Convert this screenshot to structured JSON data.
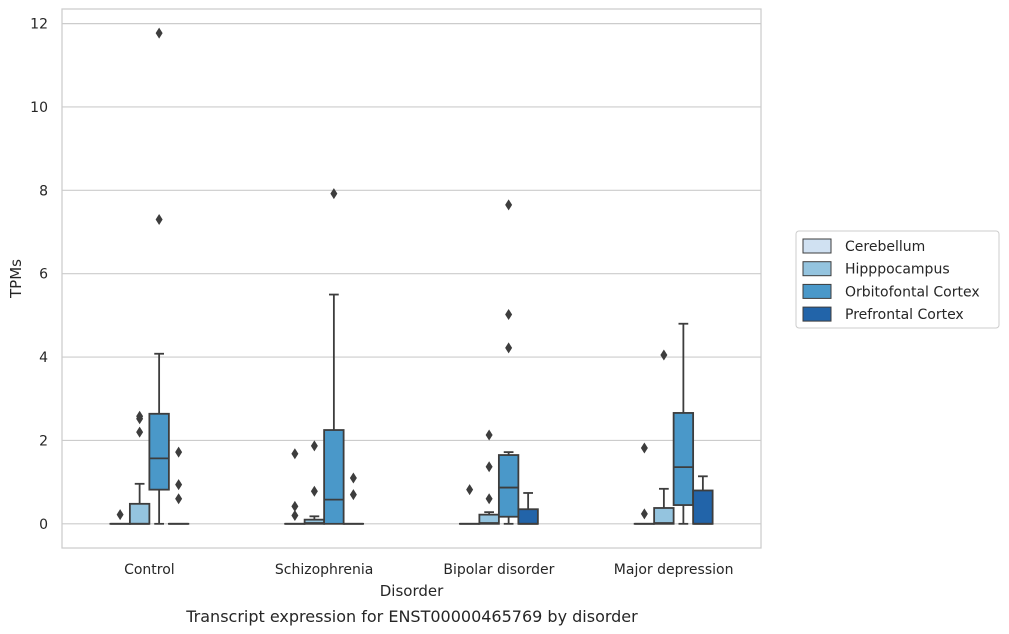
{
  "chart_data": {
    "type": "box",
    "xlabel": "Disorder",
    "ylabel": "TPMs",
    "caption": "Transcript expression for ENST00000465769 by disorder",
    "categories": [
      "Control",
      "Schizophrenia",
      "Bipolar disorder",
      "Major depression"
    ],
    "ylim": [
      -0.58,
      12.35
    ],
    "yticks": [
      0,
      2,
      4,
      6,
      8,
      10,
      12
    ],
    "grid": true,
    "legend_position": "right",
    "series": [
      {
        "name": "Cerebellum",
        "color": "#d0e1f2",
        "boxes": [
          {
            "q1": 0,
            "median": 0,
            "q3": 0,
            "whisker_low": 0,
            "whisker_high": 0,
            "outliers": [
              0.22
            ]
          },
          {
            "q1": 0,
            "median": 0,
            "q3": 0,
            "whisker_low": 0,
            "whisker_high": 0,
            "outliers": [
              0.2,
              0.42,
              1.68
            ]
          },
          {
            "q1": 0,
            "median": 0,
            "q3": 0,
            "whisker_low": 0,
            "whisker_high": 0,
            "outliers": [
              0.82
            ]
          },
          {
            "q1": 0,
            "median": 0,
            "q3": 0,
            "whisker_low": 0,
            "whisker_high": 0,
            "outliers": [
              0.24,
              1.82
            ]
          }
        ]
      },
      {
        "name": "Hipppocampus",
        "color": "#94c4df",
        "boxes": [
          {
            "q1": 0,
            "median": 0,
            "q3": 0.48,
            "whisker_low": 0,
            "whisker_high": 0.96,
            "outliers": [
              2.2,
              2.52,
              2.58
            ]
          },
          {
            "q1": 0,
            "median": 0.02,
            "q3": 0.1,
            "whisker_low": 0,
            "whisker_high": 0.18,
            "outliers": [
              0.78,
              1.87
            ]
          },
          {
            "q1": 0,
            "median": 0.02,
            "q3": 0.22,
            "whisker_low": 0,
            "whisker_high": 0.28,
            "outliers": [
              0.6,
              1.37,
              2.13
            ]
          },
          {
            "q1": 0,
            "median": 0.02,
            "q3": 0.38,
            "whisker_low": 0,
            "whisker_high": 0.84,
            "outliers": [
              4.05
            ]
          }
        ]
      },
      {
        "name": "Orbitofontal Cortex",
        "color": "#4a98c9",
        "boxes": [
          {
            "q1": 0.82,
            "median": 1.57,
            "q3": 2.64,
            "whisker_low": 0,
            "whisker_high": 4.08,
            "outliers": [
              7.3,
              11.77
            ]
          },
          {
            "q1": 0,
            "median": 0.58,
            "q3": 2.25,
            "whisker_low": 0,
            "whisker_high": 5.5,
            "outliers": [
              7.92
            ]
          },
          {
            "q1": 0.17,
            "median": 0.87,
            "q3": 1.65,
            "whisker_low": 0,
            "whisker_high": 1.72,
            "outliers": [
              4.22,
              5.02,
              7.65
            ]
          },
          {
            "q1": 0.45,
            "median": 1.36,
            "q3": 2.66,
            "whisker_low": 0,
            "whisker_high": 4.8,
            "outliers": []
          }
        ]
      },
      {
        "name": "Prefrontal Cortex",
        "color": "#2264a9",
        "boxes": [
          {
            "q1": 0,
            "median": 0,
            "q3": 0,
            "whisker_low": 0,
            "whisker_high": 0,
            "outliers": [
              0.6,
              0.94,
              1.72
            ]
          },
          {
            "q1": 0,
            "median": 0,
            "q3": 0,
            "whisker_low": 0,
            "whisker_high": 0,
            "outliers": [
              0.7,
              1.1
            ]
          },
          {
            "q1": 0,
            "median": 0,
            "q3": 0.35,
            "whisker_low": 0,
            "whisker_high": 0.74,
            "outliers": []
          },
          {
            "q1": 0,
            "median": 0,
            "q3": 0.8,
            "whisker_low": 0,
            "whisker_high": 1.14,
            "outliers": []
          }
        ]
      }
    ]
  }
}
